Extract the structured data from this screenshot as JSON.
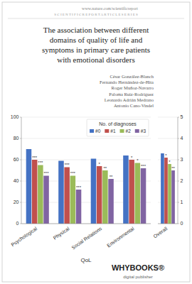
{
  "chart_data": [
    {
      "type": "bar",
      "title": "The association between different\ndomains of quality of life and\nsymptoms in primary care patients\nwith emotional disorders",
      "subtitle": "César González-Blanch\nFernando Hernández-de-Hita\nRoger Muñoz-Navarro\nPaloma Ruiz-Rodríguez\nLeonardo Adrián Medrano\nAntonio Cano-Vindel",
      "annotations": [
        "www.nature.com/scientificreport",
        "S C I E N T I F I C R E P O R T A R T I C L E S E R I E S",
        "WHYBOOKS®",
        "digital publisher"
      ],
      "xlabel": "QoL",
      "categories": [
        "Psychological",
        "Physical",
        "Social Relations",
        "Environmental"
      ],
      "legend_title": "No. of diagnoses",
      "series": [
        {
          "name": "#0",
          "color": "#4472c4",
          "values": [
            70,
            59,
            61,
            64
          ]
        },
        {
          "name": "#1",
          "color": "#c0504d",
          "values": [
            60,
            53,
            54,
            60
          ],
          "annotations": [
            "***",
            "***",
            "*",
            "*"
          ]
        },
        {
          "name": "#2",
          "color": "#9bbb59",
          "values": [
            55,
            45,
            50,
            57
          ],
          "annotations": [
            "***",
            "***",
            "**",
            "*"
          ]
        },
        {
          "name": "#3",
          "color": "#8064a2",
          "values": [
            45,
            32,
            42,
            52
          ],
          "annotations": [
            "***",
            "***",
            "**",
            "***"
          ]
        }
      ],
      "ylim": [
        0,
        100
      ],
      "yticks": [
        0,
        20,
        40,
        60,
        80,
        100
      ],
      "grid": true,
      "legend": "upper right"
    },
    {
      "type": "bar",
      "categories": [
        "Overall"
      ],
      "series": [
        {
          "color": "#4472c4",
          "values": [
            3.3
          ]
        },
        {
          "color": "#c0504d",
          "values": [
            3.1
          ],
          "annotations": [
            "*"
          ]
        },
        {
          "color": "#9bbb59",
          "values": [
            2.8
          ],
          "annotations": [
            "*"
          ]
        },
        {
          "color": "#8064a2",
          "values": [
            2.5
          ],
          "annotations": [
            "**"
          ]
        }
      ],
      "ylim": [
        0,
        5
      ],
      "yticks": [
        0,
        1,
        2,
        3,
        4,
        5
      ],
      "grid": true
    }
  ]
}
